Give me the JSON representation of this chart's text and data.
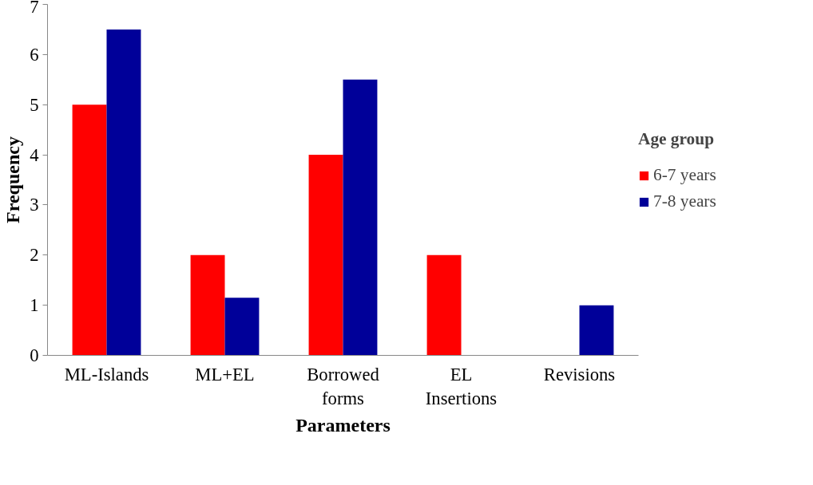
{
  "chart_data": {
    "type": "bar",
    "xlabel": "Parameters",
    "ylabel": "Frequency",
    "legend_title": "Age group",
    "categories": [
      "ML-Islands",
      "ML+EL",
      "Borrowed forms",
      "EL Insertions",
      "Revisions"
    ],
    "series": [
      {
        "name": "6-7 years",
        "color": "#ff0000",
        "values": [
          5,
          2,
          4,
          2,
          0
        ]
      },
      {
        "name": "7-8 years",
        "color": "#000099",
        "values": [
          6.5,
          1.15,
          5.5,
          0,
          1
        ]
      }
    ],
    "ylim": [
      0,
      7
    ],
    "yticks": [
      0,
      1,
      2,
      3,
      4,
      5,
      6,
      7
    ],
    "grid": false,
    "legend": "right"
  }
}
